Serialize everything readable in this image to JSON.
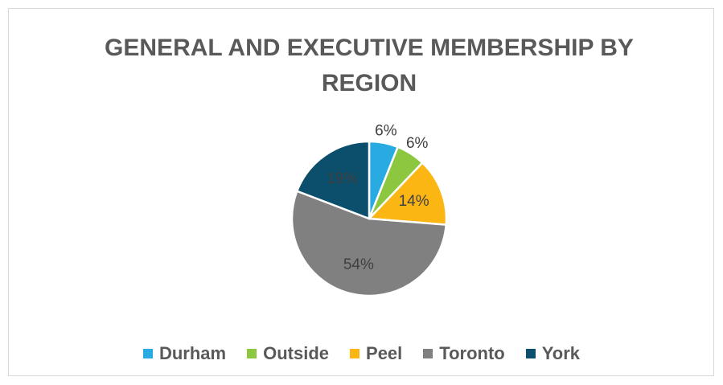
{
  "chart_data": {
    "type": "pie",
    "title": "GENERAL AND EXECUTIVE MEMBERSHIP BY REGION",
    "categories": [
      "Durham",
      "Outside",
      "Peel",
      "Toronto",
      "York"
    ],
    "values": [
      6,
      6,
      14,
      54,
      19
    ],
    "value_labels": [
      "6%",
      "6%",
      "14%",
      "54%",
      "19%"
    ],
    "colors": [
      "#29abe2",
      "#8dc63f",
      "#fbb614",
      "#808080",
      "#0b4f6c"
    ],
    "legend": "bottom"
  }
}
